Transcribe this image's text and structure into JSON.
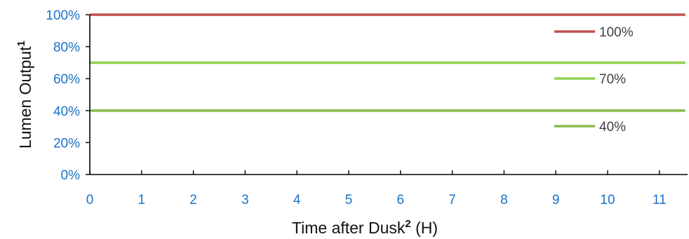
{
  "chart_data": {
    "type": "line",
    "xlabel": "Time after Dusk",
    "xlabel_sup": "2",
    "xlabel_suffix": " (H)",
    "ylabel": "Lumen Output",
    "ylabel_sup": "1",
    "xlim": [
      0,
      11.5
    ],
    "ylim": [
      0,
      100
    ],
    "x_ticks": [
      "0",
      "1",
      "2",
      "3",
      "4",
      "5",
      "6",
      "7",
      "8",
      "9",
      "10",
      "11"
    ],
    "y_ticks": [
      "0%",
      "20%",
      "40%",
      "60%",
      "80%",
      "100%"
    ],
    "grid": false,
    "legend_position": "right",
    "series": [
      {
        "name": "100%",
        "color": "#c0504d",
        "x": [
          0,
          11.5
        ],
        "values": [
          100,
          100
        ]
      },
      {
        "name": "70%",
        "color": "#92d050",
        "x": [
          0,
          11.5
        ],
        "values": [
          70,
          70
        ]
      },
      {
        "name": "40%",
        "color": "#8db94f",
        "x": [
          0,
          11.5
        ],
        "values": [
          40,
          40
        ]
      }
    ]
  }
}
